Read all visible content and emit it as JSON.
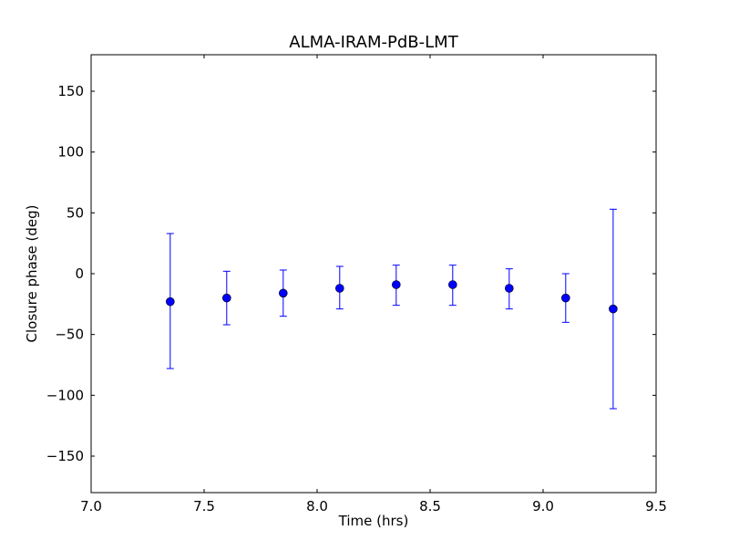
{
  "chart_data": {
    "type": "scatter",
    "title": "ALMA-IRAM-PdB-LMT",
    "xlabel": "Time (hrs)",
    "ylabel": "Closure phase (deg)",
    "xlim": [
      7.0,
      9.5
    ],
    "ylim": [
      -180,
      180
    ],
    "xticks": [
      7.0,
      7.5,
      8.0,
      8.5,
      9.0,
      9.5
    ],
    "xtick_labels": [
      "7.0",
      "7.5",
      "8.0",
      "8.5",
      "9.0",
      "9.5"
    ],
    "yticks": [
      -150,
      -100,
      -50,
      0,
      50,
      100,
      150
    ],
    "ytick_labels": [
      "−150",
      "−100",
      "−50",
      "0",
      "50",
      "100",
      "150"
    ],
    "grid": false,
    "marker_color": "#0000ff",
    "series": [
      {
        "x": [
          7.35,
          7.6,
          7.85,
          8.1,
          8.35,
          8.6,
          8.85,
          9.1,
          9.31
        ],
        "y": [
          -23,
          -20,
          -16,
          -12,
          -9,
          -9,
          -12,
          -20,
          -29
        ],
        "yerr_low": [
          -78,
          -42,
          -35,
          -29,
          -26,
          -26,
          -29,
          -40,
          -111
        ],
        "yerr_high": [
          33,
          2,
          3,
          6,
          7,
          7,
          4,
          0,
          53
        ]
      }
    ]
  }
}
